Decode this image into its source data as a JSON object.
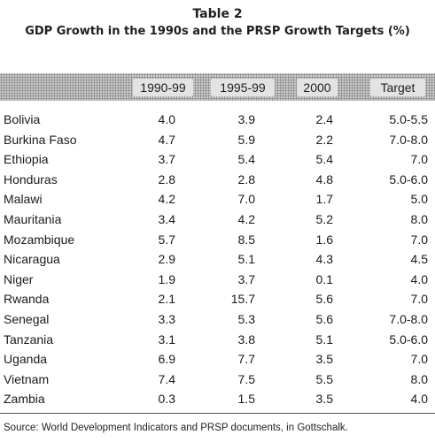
{
  "title": {
    "line1": "Table 2",
    "line2": "GDP Growth in the 1990s and the PRSP Growth Targets (%)"
  },
  "table": {
    "columns": [
      "1990-99",
      "1995-99",
      "2000",
      "Target"
    ],
    "rows": [
      {
        "country": "Bolivia",
        "values": [
          "4.0",
          "3.9",
          "2.4",
          "5.0-5.5"
        ]
      },
      {
        "country": "Burkina Faso",
        "values": [
          "4.7",
          "5.9",
          "2.2",
          "7.0-8.0"
        ]
      },
      {
        "country": "Ethiopia",
        "values": [
          "3.7",
          "5.4",
          "5.4",
          "7.0"
        ]
      },
      {
        "country": "Honduras",
        "values": [
          "2.8",
          "2.8",
          "4.8",
          "5.0-6.0"
        ]
      },
      {
        "country": "Malawi",
        "values": [
          "4.2",
          "7.0",
          "1.7",
          "5.0"
        ]
      },
      {
        "country": "Mauritania",
        "values": [
          "3.4",
          "4.2",
          "5.2",
          "8.0"
        ]
      },
      {
        "country": "Mozambique",
        "values": [
          "5.7",
          "8.5",
          "1.6",
          "7.0"
        ]
      },
      {
        "country": "Nicaragua",
        "values": [
          "2.9",
          "5.1",
          "4.3",
          "4.5"
        ]
      },
      {
        "country": "Niger",
        "values": [
          "1.9",
          "3.7",
          "0.1",
          "4.0"
        ]
      },
      {
        "country": "Rwanda",
        "values": [
          "2.1",
          "15.7",
          "5.6",
          "7.0"
        ]
      },
      {
        "country": "Senegal",
        "values": [
          "3.3",
          "5.3",
          "5.6",
          "7.0-8.0"
        ]
      },
      {
        "country": "Tanzania",
        "values": [
          "3.1",
          "3.8",
          "5.1",
          "5.0-6.0"
        ]
      },
      {
        "country": "Uganda",
        "values": [
          "6.9",
          "7.7",
          "3.5",
          "7.0"
        ]
      },
      {
        "country": "Vietnam",
        "values": [
          "7.4",
          "7.5",
          "5.5",
          "8.0"
        ]
      },
      {
        "country": "Zambia",
        "values": [
          "0.3",
          "1.5",
          "3.5",
          "4.0"
        ]
      }
    ]
  },
  "source": "Source: World Development Indicators and PRSP documents, in Gottschalk."
}
